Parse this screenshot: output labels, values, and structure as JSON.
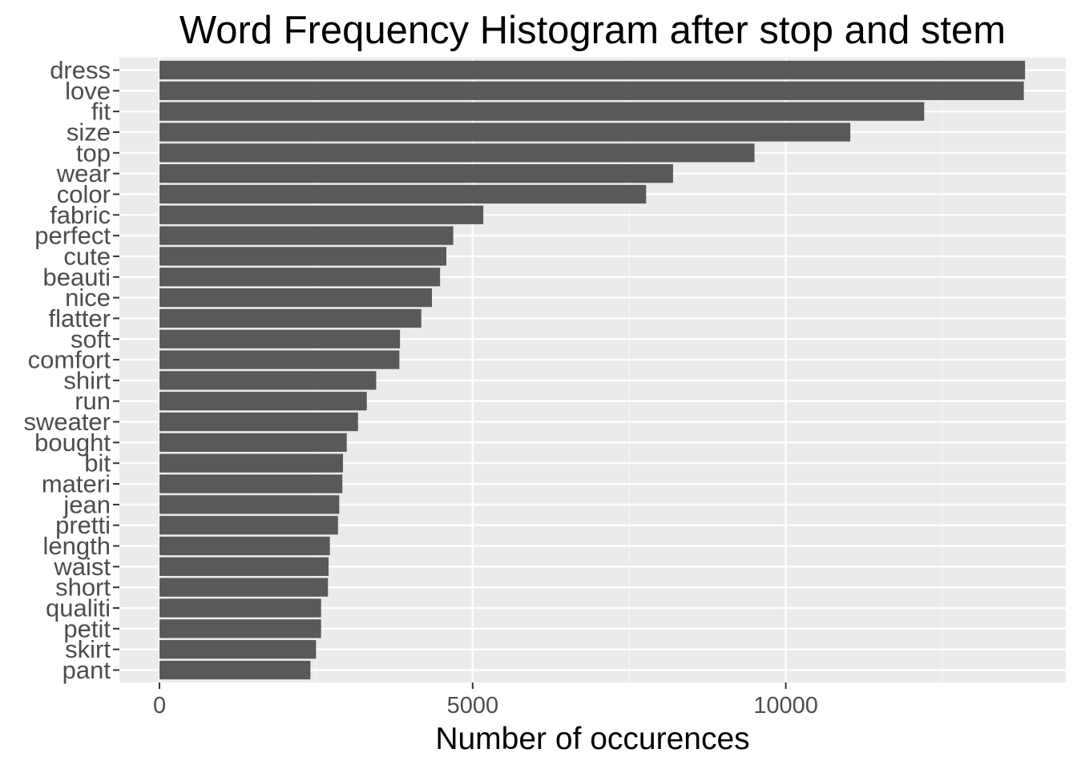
{
  "chart_data": {
    "type": "bar",
    "orientation": "horizontal",
    "title": "Word Frequency Histogram after stop and stem",
    "xlabel": "Number of occurences",
    "ylabel": "",
    "categories": [
      "dress",
      "love",
      "fit",
      "size",
      "top",
      "wear",
      "color",
      "fabric",
      "perfect",
      "cute",
      "beauti",
      "nice",
      "flatter",
      "soft",
      "comfort",
      "shirt",
      "run",
      "sweater",
      "bought",
      "bit",
      "materi",
      "jean",
      "pretti",
      "length",
      "waist",
      "short",
      "qualiti",
      "petit",
      "skirt",
      "pant"
    ],
    "values": [
      13820,
      13800,
      12210,
      11030,
      9500,
      8200,
      7770,
      5170,
      4690,
      4580,
      4480,
      4350,
      4180,
      3840,
      3830,
      3460,
      3310,
      3170,
      2990,
      2930,
      2920,
      2870,
      2850,
      2720,
      2700,
      2690,
      2580,
      2580,
      2500,
      2410
    ],
    "xlim": [
      -640,
      14470
    ],
    "xticks": [
      0,
      5000,
      10000
    ],
    "xtick_labels": [
      "0",
      "5000",
      "10000"
    ],
    "grid": true,
    "legend": "none",
    "colors": {
      "bar": "#595959",
      "panel": "#ebebeb",
      "grid_major": "#ffffff",
      "grid_minor": "#f5f5f5",
      "tick": "#333333"
    }
  }
}
